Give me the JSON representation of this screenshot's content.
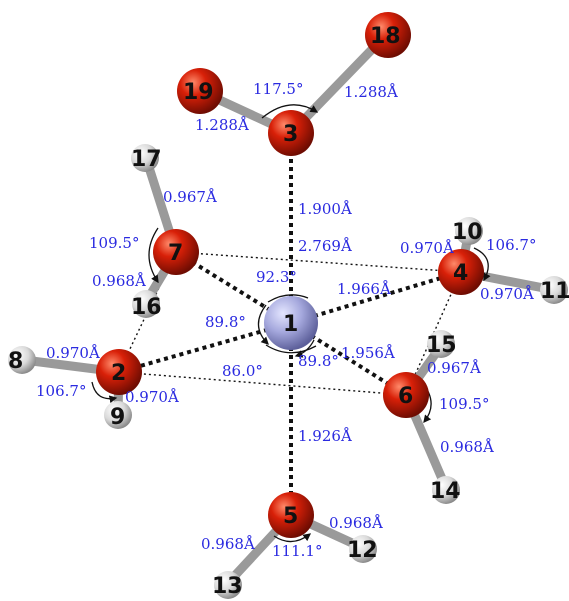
{
  "colors": {
    "oxygen": "#d82008",
    "hydrogen": "#d9d9d9",
    "metal": "#a5a8dd",
    "label": "#2a2ae0",
    "atom_number": "#111111",
    "bond": "#9a9a9a",
    "coordination": "#111111"
  },
  "atoms": [
    {
      "id": "1",
      "element": "metal"
    },
    {
      "id": "2",
      "element": "oxygen"
    },
    {
      "id": "3",
      "element": "oxygen"
    },
    {
      "id": "4",
      "element": "oxygen"
    },
    {
      "id": "5",
      "element": "oxygen"
    },
    {
      "id": "6",
      "element": "oxygen"
    },
    {
      "id": "7",
      "element": "oxygen"
    },
    {
      "id": "8",
      "element": "hydrogen"
    },
    {
      "id": "9",
      "element": "hydrogen"
    },
    {
      "id": "10",
      "element": "hydrogen"
    },
    {
      "id": "11",
      "element": "hydrogen"
    },
    {
      "id": "12",
      "element": "hydrogen"
    },
    {
      "id": "13",
      "element": "hydrogen"
    },
    {
      "id": "14",
      "element": "hydrogen"
    },
    {
      "id": "15",
      "element": "hydrogen"
    },
    {
      "id": "16",
      "element": "hydrogen"
    },
    {
      "id": "17",
      "element": "hydrogen"
    },
    {
      "id": "18",
      "element": "oxygen"
    },
    {
      "id": "19",
      "element": "oxygen"
    }
  ],
  "bond_lengths": {
    "o3_o19": "1.288Å",
    "o3_o18": "1.288Å",
    "o7_h17": "0.967Å",
    "o7_h16": "0.968Å",
    "m1_o3": "1.900Å",
    "o7_o4": "2.769Å",
    "o4_h10": "0.970Å",
    "o4_h11": "0.970Å",
    "m1_o4": "1.966Å",
    "m1_o6": "1.956Å",
    "o6_h15": "0.967Å",
    "o6_h14": "0.968Å",
    "o2_h8": "0.970Å",
    "o2_h9": "0.970Å",
    "m1_o5": "1.926Å",
    "o5_h12": "0.968Å",
    "o5_h13": "0.968Å"
  },
  "angles": {
    "o19_o3_o18": "117.5°",
    "h17_o7_h16": "109.5°",
    "o7_m1_o4": "92.3°",
    "h10_o4_h11": "106.7°",
    "o7_m1_o2": "89.8°",
    "o2_m1_o6": "86.0°",
    "o6_m1_o5": "89.8°",
    "h8_o2_h9": "106.7°",
    "h15_o6_h14": "109.5°",
    "h13_o5_h12": "111.1°"
  }
}
